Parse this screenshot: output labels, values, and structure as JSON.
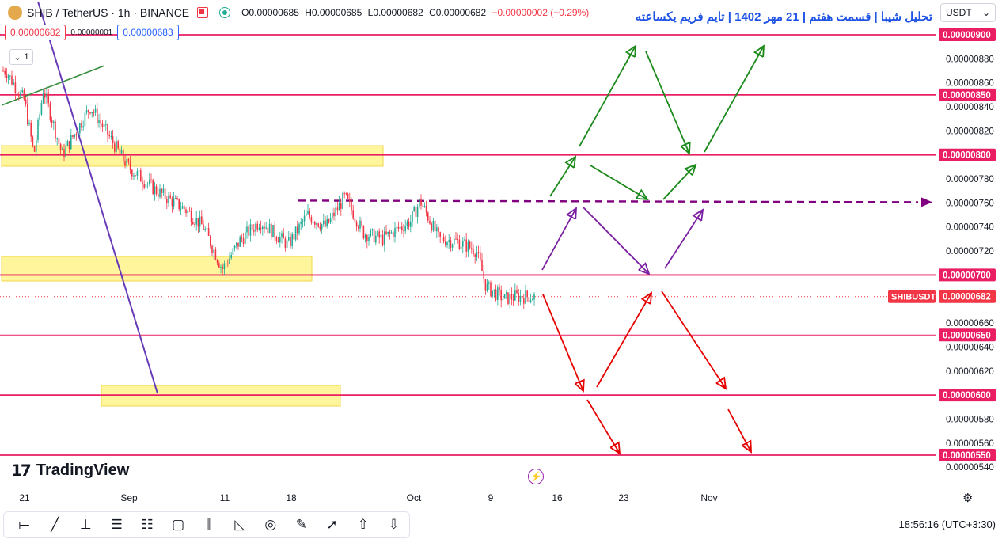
{
  "header": {
    "symbol": "SHIB / TetherUS · 1h · BINANCE",
    "ohlc_open": "O0.00000685",
    "ohlc_high": "H0.00000685",
    "ohlc_low": "L0.00000682",
    "ohlc_close": "C0.00000682",
    "ohlc_change": "−0.00000002 (−0.29%)",
    "sell_price": "0.00000682",
    "spread": "0.00000001",
    "buy_price": "0.00000683",
    "layers_count": "1"
  },
  "annotation_title": "تحلیل شیبا | قسمت هفتم | 21 مهر 1402 | تایم فریم یکساعته",
  "currency_selector": "USDT",
  "logo_text": "TradingView",
  "clock": "18:56:16 (UTC+3:30)",
  "colors": {
    "up": "#22ab94",
    "down": "#f23645",
    "level_line": "#e91e63",
    "zone_fill": "#fff59d",
    "trend_green": "#388e3c",
    "trend_purple": "#673ab7",
    "dashed_purple": "#800080",
    "arrow_green": "#1b8a1b",
    "arrow_purple": "#7b1fa2",
    "arrow_red": "#e60000"
  },
  "toolbar": {
    "icons": [
      "horizontal-ray-icon",
      "trend-line-icon",
      "vertical-line-icon",
      "fib-retracement-icon",
      "fib-channel-icon",
      "rectangle-icon",
      "pitchfork-icon",
      "triangle-pattern-icon",
      "circle-icon",
      "pencil-icon",
      "arrow-icon",
      "arrow-up-icon",
      "arrow-down-icon"
    ],
    "glyphs": [
      "⟝",
      "╱",
      "⊥",
      "☰",
      "☷",
      "▢",
      "⫼",
      "◺",
      "◎",
      "✎",
      "➚",
      "⇧",
      "⇩"
    ]
  },
  "chart_data": {
    "type": "line",
    "title": "SHIB / TetherUS · 1h · BINANCE",
    "xlabel": "",
    "ylabel": "",
    "x_tick_labels": [
      "21",
      "Sep",
      "11",
      "18",
      "Oct",
      "9",
      "16",
      "23",
      "Nov"
    ],
    "y_tick_labels": [
      "0.00000880",
      "0.00000860",
      "0.00000840",
      "0.00000820",
      "0.00000780",
      "0.00000760",
      "0.00000740",
      "0.00000720",
      "0.00000660",
      "0.00000640",
      "0.00000620",
      "0.00000580",
      "0.00000560",
      "0.00000540"
    ],
    "ylim": [
      5.3e-06,
      9.2e-06
    ],
    "highlighted_levels": [
      "0.00000900",
      "0.00000850",
      "0.00000800",
      "0.00000700",
      "0.00000650",
      "0.00000600",
      "0.00000550"
    ],
    "last_price": "0.00000682",
    "last_price_label": "SHIBUSDT",
    "price_path": [
      [
        "Aug 19",
        8.7e-06
      ],
      [
        "Aug 21",
        8.45e-06
      ],
      [
        "Aug 22",
        8e-06
      ],
      [
        "Aug 23",
        8.55e-06
      ],
      [
        "Aug 25",
        8e-06
      ],
      [
        "Aug 28",
        8.4e-06
      ],
      [
        "Aug 30",
        8.15e-06
      ],
      [
        "Sep 1",
        7.9e-06
      ],
      [
        "Sep 4",
        7.7e-06
      ],
      [
        "Sep 7",
        7.55e-06
      ],
      [
        "Sep 9",
        7.4e-06
      ],
      [
        "Sep 11",
        7.05e-06
      ],
      [
        "Sep 13",
        7.3e-06
      ],
      [
        "Sep 15",
        7.45e-06
      ],
      [
        "Sep 18",
        7.25e-06
      ],
      [
        "Sep 20",
        7.5e-06
      ],
      [
        "Sep 22",
        7.4e-06
      ],
      [
        "Sep 24",
        7.65e-06
      ],
      [
        "Sep 26",
        7.35e-06
      ],
      [
        "Sep 28",
        7.3e-06
      ],
      [
        "Oct 1",
        7.45e-06
      ],
      [
        "Oct 2",
        7.62e-06
      ],
      [
        "Oct 4",
        7.3e-06
      ],
      [
        "Oct 6",
        7.28e-06
      ],
      [
        "Oct 8",
        7.2e-06
      ],
      [
        "Oct 9",
        6.9e-06
      ],
      [
        "Oct 11",
        6.8e-06
      ],
      [
        "Oct 12",
        6.82e-06
      ]
    ],
    "grid": false
  }
}
